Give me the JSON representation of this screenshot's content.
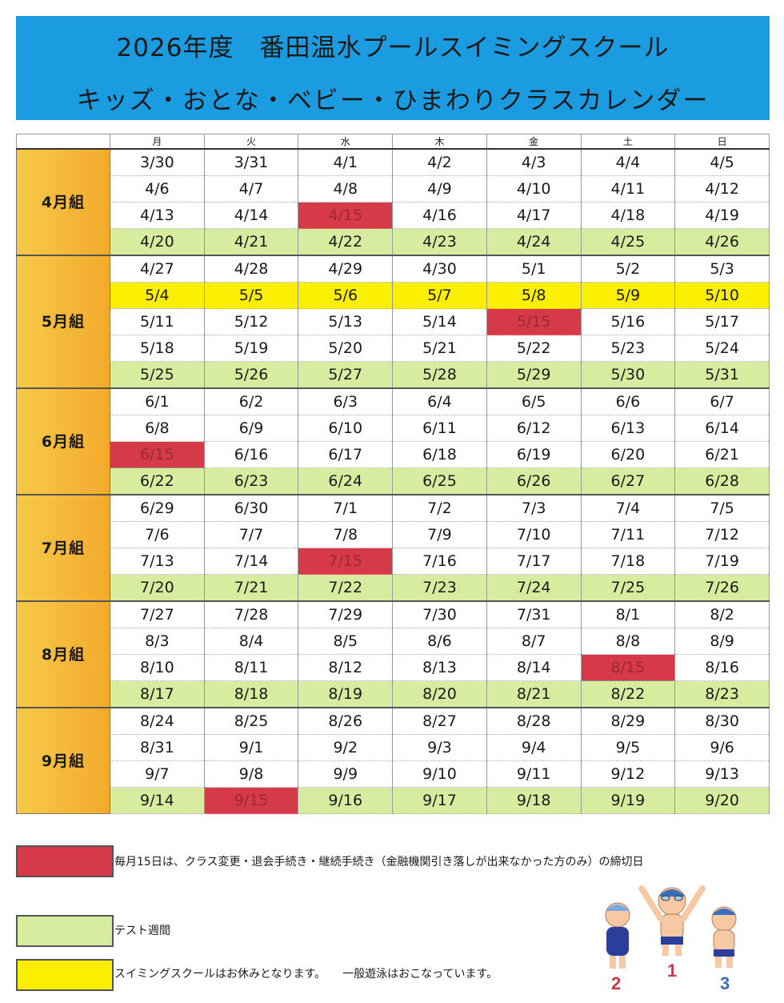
{
  "header": {
    "title_line1": "2026年度　番田温水プールスイミングスクール",
    "title_line2": "キッズ・おとな・ベビー・ひまわりクラスカレンダー"
  },
  "weekdays": [
    "月",
    "火",
    "水",
    "木",
    "金",
    "土",
    "日"
  ],
  "groups": [
    {
      "label": "4月組",
      "rows": [
        {
          "type": "normal",
          "days": [
            "3/30",
            "3/31",
            "4/1",
            "4/2",
            "4/3",
            "4/4",
            "4/5"
          ]
        },
        {
          "type": "normal",
          "days": [
            "4/6",
            "4/7",
            "4/8",
            "4/9",
            "4/10",
            "4/11",
            "4/12"
          ]
        },
        {
          "type": "normal",
          "days": [
            "4/13",
            "4/14",
            "4/15",
            "4/16",
            "4/17",
            "4/18",
            "4/19"
          ],
          "red": [
            2
          ]
        },
        {
          "type": "test",
          "days": [
            "4/20",
            "4/21",
            "4/22",
            "4/23",
            "4/24",
            "4/25",
            "4/26"
          ]
        }
      ]
    },
    {
      "label": "5月組",
      "rows": [
        {
          "type": "normal",
          "days": [
            "4/27",
            "4/28",
            "4/29",
            "4/30",
            "5/1",
            "5/2",
            "5/3"
          ]
        },
        {
          "type": "holiday",
          "days": [
            "5/4",
            "5/5",
            "5/6",
            "5/7",
            "5/8",
            "5/9",
            "5/10"
          ]
        },
        {
          "type": "normal",
          "days": [
            "5/11",
            "5/12",
            "5/13",
            "5/14",
            "5/15",
            "5/16",
            "5/17"
          ],
          "red": [
            4
          ]
        },
        {
          "type": "normal",
          "days": [
            "5/18",
            "5/19",
            "5/20",
            "5/21",
            "5/22",
            "5/23",
            "5/24"
          ]
        },
        {
          "type": "test",
          "days": [
            "5/25",
            "5/26",
            "5/27",
            "5/28",
            "5/29",
            "5/30",
            "5/31"
          ]
        }
      ]
    },
    {
      "label": "6月組",
      "rows": [
        {
          "type": "normal",
          "days": [
            "6/1",
            "6/2",
            "6/3",
            "6/4",
            "6/5",
            "6/6",
            "6/7"
          ]
        },
        {
          "type": "normal",
          "days": [
            "6/8",
            "6/9",
            "6/10",
            "6/11",
            "6/12",
            "6/13",
            "6/14"
          ]
        },
        {
          "type": "normal",
          "days": [
            "6/15",
            "6/16",
            "6/17",
            "6/18",
            "6/19",
            "6/20",
            "6/21"
          ],
          "red": [
            0
          ]
        },
        {
          "type": "test",
          "days": [
            "6/22",
            "6/23",
            "6/24",
            "6/25",
            "6/26",
            "6/27",
            "6/28"
          ]
        }
      ]
    },
    {
      "label": "7月組",
      "rows": [
        {
          "type": "normal",
          "days": [
            "6/29",
            "6/30",
            "7/1",
            "7/2",
            "7/3",
            "7/4",
            "7/5"
          ]
        },
        {
          "type": "normal",
          "days": [
            "7/6",
            "7/7",
            "7/8",
            "7/9",
            "7/10",
            "7/11",
            "7/12"
          ]
        },
        {
          "type": "normal",
          "days": [
            "7/13",
            "7/14",
            "7/15",
            "7/16",
            "7/17",
            "7/18",
            "7/19"
          ],
          "red": [
            2
          ]
        },
        {
          "type": "test",
          "days": [
            "7/20",
            "7/21",
            "7/22",
            "7/23",
            "7/24",
            "7/25",
            "7/26"
          ]
        }
      ]
    },
    {
      "label": "8月組",
      "rows": [
        {
          "type": "normal",
          "days": [
            "7/27",
            "7/28",
            "7/29",
            "7/30",
            "7/31",
            "8/1",
            "8/2"
          ]
        },
        {
          "type": "normal",
          "days": [
            "8/3",
            "8/4",
            "8/5",
            "8/6",
            "8/7",
            "8/8",
            "8/9"
          ]
        },
        {
          "type": "normal",
          "days": [
            "8/10",
            "8/11",
            "8/12",
            "8/13",
            "8/14",
            "8/15",
            "8/16"
          ],
          "red": [
            5
          ]
        },
        {
          "type": "test",
          "days": [
            "8/17",
            "8/18",
            "8/19",
            "8/20",
            "8/21",
            "8/22",
            "8/23"
          ]
        }
      ]
    },
    {
      "label": "9月組",
      "rows": [
        {
          "type": "normal",
          "days": [
            "8/24",
            "8/25",
            "8/26",
            "8/27",
            "8/28",
            "8/29",
            "8/30"
          ]
        },
        {
          "type": "normal",
          "days": [
            "8/31",
            "9/1",
            "9/2",
            "9/3",
            "9/4",
            "9/5",
            "9/6"
          ]
        },
        {
          "type": "normal",
          "days": [
            "9/7",
            "9/8",
            "9/9",
            "9/10",
            "9/11",
            "9/12",
            "9/13"
          ]
        },
        {
          "type": "test",
          "days": [
            "9/14",
            "9/15",
            "9/16",
            "9/17",
            "9/18",
            "9/19",
            "9/20"
          ],
          "red": [
            1
          ]
        }
      ]
    }
  ],
  "legend": {
    "deadline": "毎月15日は、クラス変更・退会手続き・継続手続き（金融機関引き落しが出来なかった方のみ）の締切日",
    "test_week": "テスト週間",
    "closed": "スイミングスクールはお休みとなります。　　一般遊泳はおこなっています。"
  },
  "colors": {
    "header_bg": "#1b9be0",
    "group_label": "#f3b52f",
    "test_week": "#d7ec9f",
    "closed": "#fbef00",
    "deadline": "#d63a48"
  },
  "illustration": {
    "numbers": [
      "2",
      "1",
      "3"
    ]
  }
}
